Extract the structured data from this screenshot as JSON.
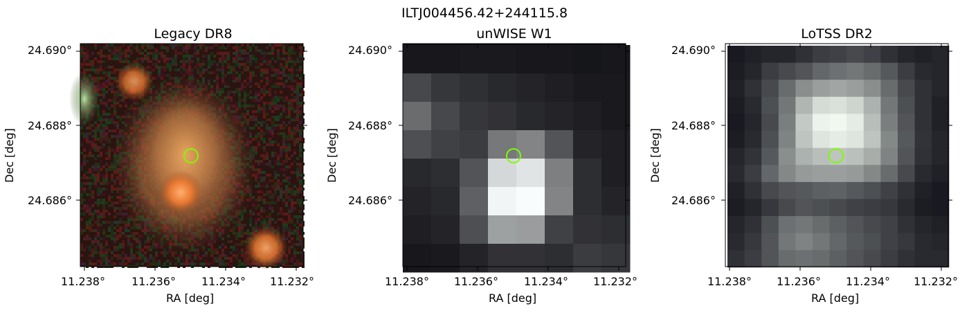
{
  "figure": {
    "title": "ILTJ004456.42+244115.8"
  },
  "panels": [
    {
      "id": "legacy",
      "title": "Legacy DR8",
      "xlabel": "RA [deg]",
      "ylabel": "Dec [deg]",
      "xticks": [
        "11.238°",
        "11.236°",
        "11.234°",
        "11.232°"
      ],
      "yticks": [
        "24.690°",
        "24.688°",
        "24.686°"
      ],
      "marker_color": "#7CFC00"
    },
    {
      "id": "unwise",
      "title": "unWISE W1",
      "xlabel": "RA [deg]",
      "ylabel": "Dec [deg]",
      "xticks": [
        "11.238°",
        "11.236°",
        "11.234°",
        "11.232°"
      ],
      "yticks": [
        "24.690°",
        "24.688°",
        "24.686°"
      ],
      "marker_color": "#7CFC00"
    },
    {
      "id": "lotss",
      "title": "LoTSS DR2",
      "xlabel": "RA [deg]",
      "ylabel": "Dec [deg]",
      "xticks": [
        "11.238°",
        "11.236°",
        "11.234°",
        "11.232°"
      ],
      "yticks": [
        "24.690°",
        "24.688°",
        "24.686°"
      ],
      "marker_color": "#7CFC00"
    }
  ]
}
